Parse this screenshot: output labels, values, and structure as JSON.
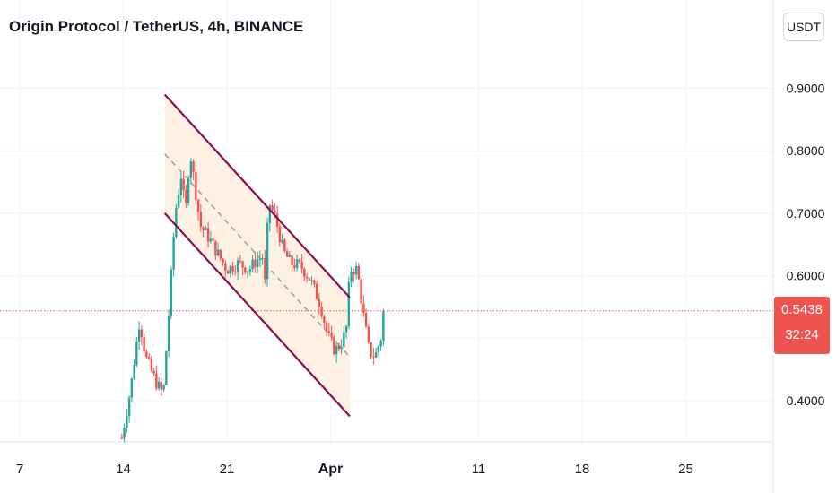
{
  "header": {
    "title": "Origin Protocol / TetherUS, 4h, BINANCE"
  },
  "axis": {
    "unit": "USDT"
  },
  "price_tag": {
    "price": "0.5438",
    "countdown": "32:24"
  },
  "colors": {
    "up": "#26a69a",
    "down": "#ef5350",
    "channel": "#880e4f",
    "channel_fill": "#fdf1e4",
    "midline": "#9e9e9e",
    "last_price": "#ef5350"
  },
  "chart_data": {
    "type": "candlestick",
    "title": "Origin Protocol / TetherUS, 4h, BINANCE",
    "y_axis": {
      "ticks": [
        0.4,
        0.5,
        0.6,
        0.7,
        0.8,
        0.9
      ],
      "tick_labels": [
        "0.4000",
        "",
        "0.6000",
        "0.7000",
        "0.8000",
        "0.9000"
      ],
      "range": [
        0.335,
        1.03
      ]
    },
    "x_axis": {
      "range_days": [
        6,
        33
      ],
      "ticks": [
        {
          "label": "7",
          "day": 7
        },
        {
          "label": "14",
          "day": 14
        },
        {
          "label": "21",
          "day": 21
        },
        {
          "label": "Apr",
          "day": 28,
          "bold": true
        },
        {
          "label": "11",
          "day": 38
        },
        {
          "label": "18",
          "day": 45
        },
        {
          "label": "25",
          "day": 52
        }
      ]
    },
    "last_price": 0.5438,
    "channel": {
      "upper": [
        [
          16.8,
          0.89
        ],
        [
          29.3,
          0.565
        ]
      ],
      "lower": [
        [
          16.8,
          0.7
        ],
        [
          29.3,
          0.375
        ]
      ],
      "mid": [
        [
          16.8,
          0.795
        ],
        [
          29.3,
          0.47
        ]
      ]
    },
    "price_path": [
      [
        13.9,
        0.34
      ],
      [
        14.5,
        0.42
      ],
      [
        15.1,
        0.53
      ],
      [
        15.5,
        0.47
      ],
      [
        16.2,
        0.43
      ],
      [
        16.7,
        0.41
      ],
      [
        17.1,
        0.55
      ],
      [
        17.5,
        0.7
      ],
      [
        17.9,
        0.76
      ],
      [
        18.2,
        0.7
      ],
      [
        18.5,
        0.8
      ],
      [
        18.8,
        0.75
      ],
      [
        19.2,
        0.68
      ],
      [
        19.8,
        0.66
      ],
      [
        20.5,
        0.63
      ],
      [
        21.0,
        0.61
      ],
      [
        21.8,
        0.62
      ],
      [
        22.5,
        0.61
      ],
      [
        23.0,
        0.625
      ],
      [
        23.4,
        0.63
      ],
      [
        23.6,
        0.58
      ],
      [
        23.8,
        0.72
      ],
      [
        24.3,
        0.69
      ],
      [
        24.8,
        0.64
      ],
      [
        25.3,
        0.62
      ],
      [
        26.0,
        0.615
      ],
      [
        26.6,
        0.595
      ],
      [
        27.3,
        0.555
      ],
      [
        27.8,
        0.505
      ],
      [
        28.3,
        0.48
      ],
      [
        28.8,
        0.495
      ],
      [
        29.1,
        0.52
      ],
      [
        29.3,
        0.61
      ],
      [
        29.8,
        0.61
      ],
      [
        30.2,
        0.54
      ],
      [
        30.6,
        0.48
      ],
      [
        31.0,
        0.47
      ],
      [
        31.4,
        0.5
      ],
      [
        31.65,
        0.5438
      ]
    ]
  }
}
